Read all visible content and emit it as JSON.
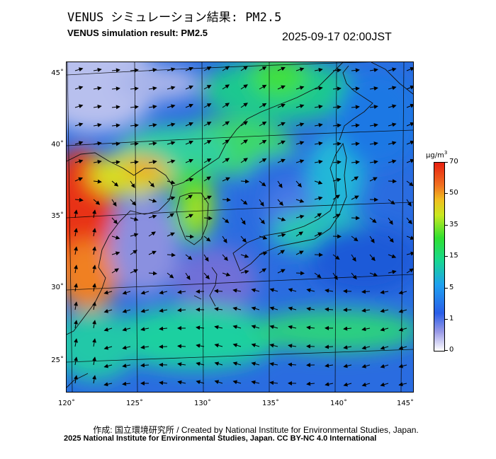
{
  "header": {
    "title_jp": "VENUS シミュレーション結果: PM2.5",
    "title_en": "VENUS simulation result: PM2.5",
    "timestamp": "2025-09-17 02:00JST"
  },
  "map": {
    "latitude_labels": [
      "45˚",
      "40˚",
      "35˚",
      "30˚",
      "25˚"
    ],
    "longitude_labels": [
      "120˚",
      "125˚",
      "130˚",
      "135˚",
      "140˚",
      "145˚"
    ]
  },
  "legend": {
    "unit_main": "μg/m",
    "unit_sup": "3",
    "ticks": [
      "70",
      "50",
      "35",
      "15",
      "5",
      "1",
      "0"
    ],
    "colors": {
      "high": "#e82010",
      "upper": "#f0c020",
      "mid": "#30e030",
      "low": "#1ea0f0",
      "lower": "#2a5ee8",
      "min": "#ffffff"
    }
  },
  "footer": {
    "credit_line_1": "作成: 国立環境研究所 / Created by National Institute for Environmental Studies, Japan.",
    "credit_line_2": "2025 National Institute for Environmental Studies, Japan. CC BY-NC 4.0 International"
  }
}
